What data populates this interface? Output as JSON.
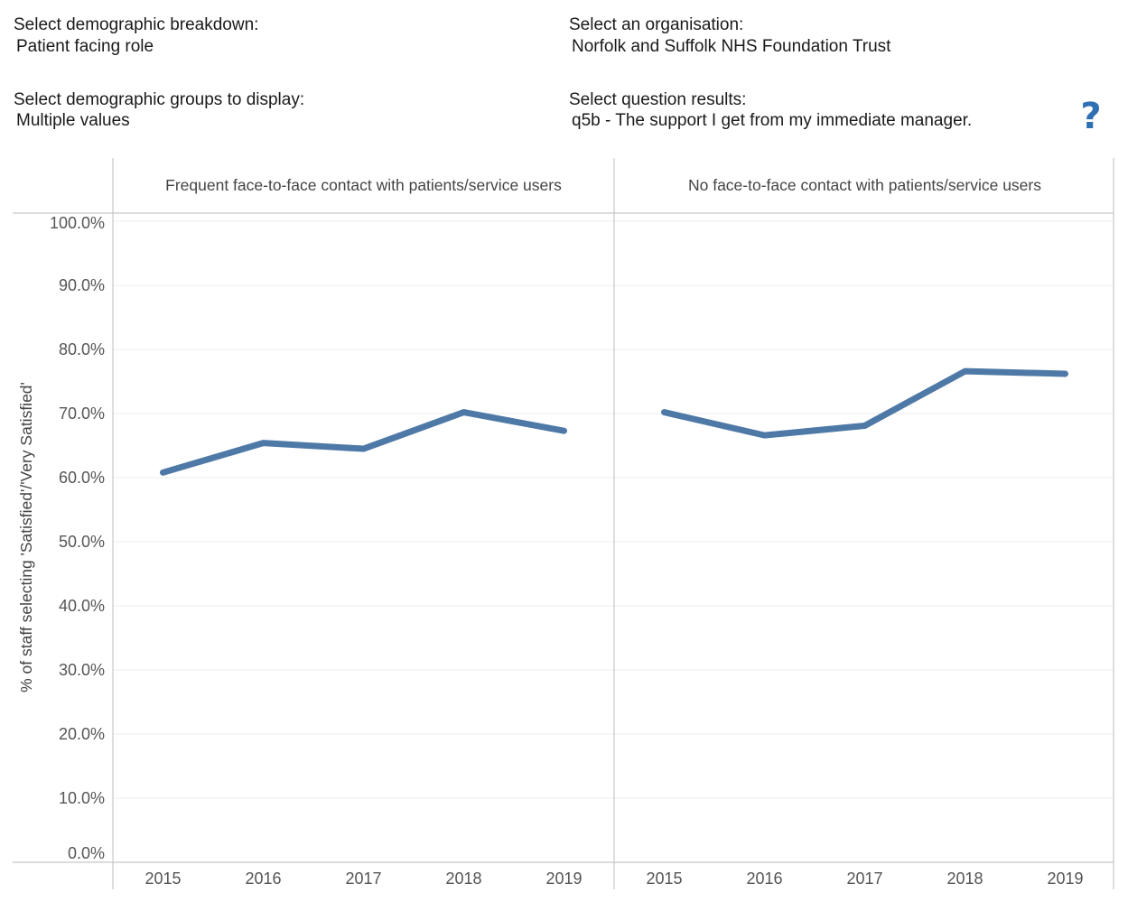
{
  "filters": {
    "breakdown_label": "Select demographic breakdown:",
    "breakdown_value": "Patient facing role",
    "groups_label": "Select demographic groups to display:",
    "groups_value": "Multiple values",
    "organisation_label": "Select an organisation:",
    "organisation_value": "Norfolk and Suffolk NHS Foundation Trust",
    "question_label": "Select question results:",
    "question_value": "q5b - The support I get from my immediate manager."
  },
  "help_icon": {
    "glyph": "?",
    "icon": "question-mark-icon",
    "color": "#2f6fb3"
  },
  "chart_data": {
    "type": "line",
    "title": "",
    "xlabel": "",
    "ylabel": "% of staff selecting 'Satisfied'/'Very Satisfied'",
    "ylim": [
      0,
      100
    ],
    "yticks": [
      0,
      10,
      20,
      30,
      40,
      50,
      60,
      70,
      80,
      90,
      100
    ],
    "ytick_labels": [
      "0.0%",
      "10.0%",
      "20.0%",
      "30.0%",
      "40.0%",
      "50.0%",
      "60.0%",
      "70.0%",
      "80.0%",
      "90.0%",
      "100.0%"
    ],
    "categories": [
      "2015",
      "2016",
      "2017",
      "2018",
      "2019"
    ],
    "line_color": "#4e79a7",
    "grid": true,
    "panels": [
      {
        "name": "Frequent face-to-face contact with patients/service users",
        "values": [
          60.8,
          65.4,
          64.5,
          70.2,
          67.3
        ]
      },
      {
        "name": "No face-to-face contact with patients/service users",
        "values": [
          70.2,
          66.6,
          68.1,
          76.6,
          76.2
        ]
      }
    ]
  }
}
